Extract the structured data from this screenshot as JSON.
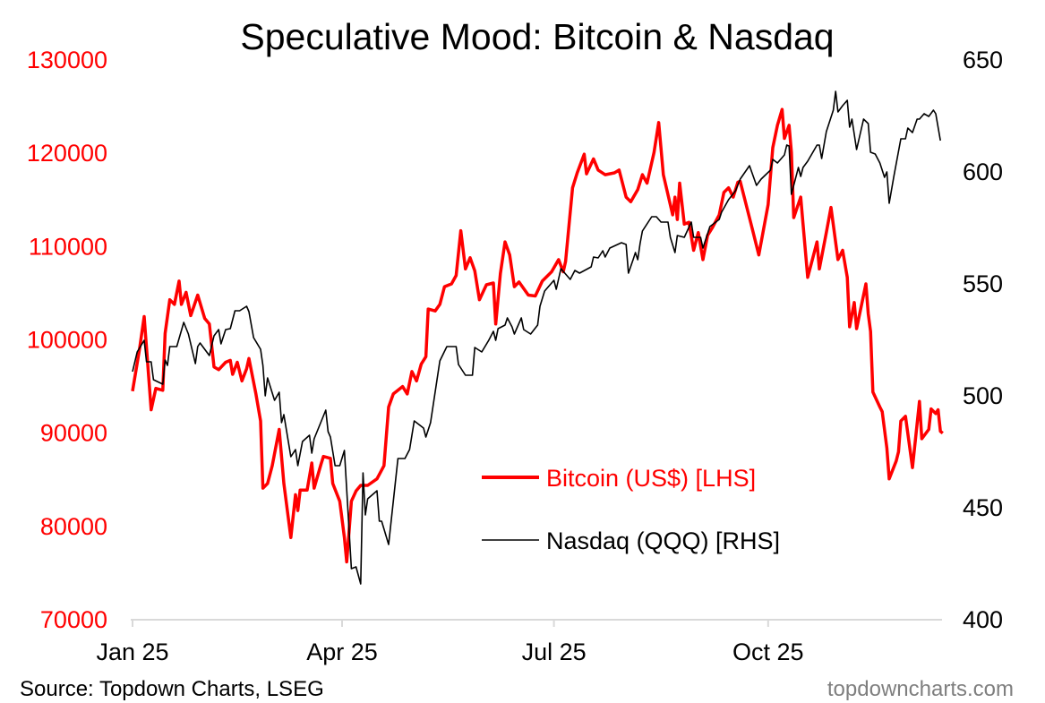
{
  "chart_data": {
    "type": "line",
    "title": "Speculative Mood: Bitcoin & Nasdaq",
    "x_unit": "days since 2025-01-01",
    "xlim": [
      0,
      348
    ],
    "xticks": [
      {
        "label": "Jan 25",
        "day": 0
      },
      {
        "label": "Apr 25",
        "day": 90
      },
      {
        "label": "Jul 25",
        "day": 181
      },
      {
        "label": "Oct 25",
        "day": 273
      }
    ],
    "left_axis": {
      "ylim": [
        70000,
        130000
      ],
      "ticks": [
        "70000",
        "80000",
        "90000",
        "100000",
        "110000",
        "120000",
        "130000"
      ],
      "color": "#ff0000"
    },
    "right_axis": {
      "ylim": [
        400,
        650
      ],
      "ticks": [
        "400",
        "450",
        "500",
        "550",
        "600",
        "650"
      ],
      "color": "#000000"
    },
    "grid": false,
    "legend_placement": "bottom-center",
    "series": [
      {
        "name": "Bitcoin (US$) [LHS]",
        "axis": "left",
        "color": "#ff0000",
        "x": [
          0,
          3,
          5,
          8,
          10,
          13,
          14,
          16,
          18,
          20,
          21,
          23,
          25,
          28,
          31,
          33,
          35,
          37,
          40,
          42,
          43,
          45,
          47,
          49,
          50,
          53,
          55,
          56,
          58,
          60,
          63,
          65,
          68,
          70,
          71,
          72,
          75,
          77,
          78,
          81,
          82,
          85,
          86,
          89,
          91,
          92,
          94,
          96,
          98,
          101,
          105,
          108,
          110,
          112,
          116,
          118,
          120,
          122,
          124,
          126,
          127,
          130,
          132,
          134,
          137,
          139,
          141,
          143,
          145,
          147,
          149,
          152,
          155,
          156,
          158,
          160,
          162,
          164,
          166,
          170,
          173,
          176,
          180,
          183,
          185,
          186,
          189,
          191,
          194,
          195,
          198,
          200,
          203,
          207,
          209,
          212,
          214,
          217,
          219,
          221,
          224,
          226,
          228,
          232,
          233,
          234,
          235,
          237,
          239,
          241,
          243,
          245,
          247,
          249,
          252,
          254,
          256,
          258,
          260,
          261,
          266,
          269,
          273,
          275,
          277,
          279,
          280,
          282,
          283,
          284,
          287,
          288,
          290,
          292,
          294,
          295,
          298,
          300,
          303,
          305,
          307,
          308,
          310,
          311,
          315,
          316,
          317,
          318,
          321,
          322,
          324,
          325,
          328,
          329,
          330,
          332,
          335,
          338,
          339,
          342,
          343,
          345,
          346,
          347,
          348
        ],
        "values": [
          94500,
          99000,
          102500,
          92500,
          94800,
          94600,
          100700,
          104300,
          103800,
          106300,
          103800,
          105100,
          102600,
          104800,
          102300,
          101700,
          97100,
          96800,
          97600,
          97800,
          96300,
          97600,
          95600,
          96900,
          98000,
          94200,
          91300,
          84100,
          84600,
          86500,
          90400,
          84600,
          78800,
          83400,
          81700,
          83900,
          83900,
          86800,
          84100,
          86700,
          87500,
          87300,
          84600,
          82700,
          78800,
          76200,
          82700,
          83800,
          84400,
          84400,
          85100,
          86500,
          92800,
          94200,
          95000,
          94200,
          96600,
          95600,
          97400,
          98200,
          103300,
          103100,
          103800,
          105700,
          106000,
          106900,
          111700,
          107600,
          108800,
          107400,
          104300,
          105900,
          106100,
          101700,
          107100,
          110500,
          109100,
          105700,
          106200,
          104800,
          104700,
          106300,
          107300,
          108600,
          107300,
          108400,
          116300,
          117900,
          119900,
          117800,
          119400,
          118200,
          117700,
          117900,
          118200,
          115300,
          114800,
          116100,
          117700,
          116800,
          120100,
          123300,
          117700,
          113400,
          115300,
          112900,
          116800,
          112400,
          112600,
          109600,
          111500,
          108600,
          111200,
          112000,
          113400,
          115800,
          116300,
          115300,
          116900,
          117000,
          112100,
          109100,
          114500,
          120600,
          123000,
          124700,
          121600,
          123000,
          120100,
          113100,
          115300,
          112400,
          106700,
          108600,
          110500,
          107600,
          111500,
          114200,
          108600,
          109600,
          106700,
          101400,
          104000,
          101200,
          106000,
          102800,
          100900,
          94400,
          92800,
          92300,
          88400,
          85100,
          87000,
          88000,
          91300,
          91800,
          86300,
          93400,
          89400,
          90400,
          92600,
          92100,
          92500,
          90200,
          90000
        ]
      },
      {
        "name": "Nasdaq (QQQ) [RHS]",
        "axis": "right",
        "color": "#000000",
        "x": [
          0,
          2,
          5,
          6,
          8,
          9,
          13,
          14,
          15,
          16,
          19,
          22,
          24,
          27,
          28,
          29,
          33,
          35,
          37,
          38,
          40,
          42,
          44,
          46,
          49,
          50,
          52,
          55,
          56,
          57,
          58,
          61,
          63,
          64,
          65,
          68,
          70,
          71,
          73,
          76,
          77,
          78,
          83,
          84,
          85,
          87,
          89,
          91,
          94,
          96,
          98,
          99,
          100,
          101,
          105,
          106,
          107,
          110,
          114,
          117,
          119,
          121,
          125,
          126,
          128,
          132,
          135,
          139,
          140,
          143,
          146,
          147,
          150,
          153,
          155,
          156,
          157,
          160,
          161,
          163,
          164,
          167,
          168,
          171,
          174,
          175,
          177,
          181,
          182,
          184,
          188,
          190,
          192,
          197,
          198,
          200,
          202,
          203,
          205,
          210,
          212,
          213,
          215,
          216,
          217,
          218,
          219,
          223,
          225,
          227,
          230,
          231,
          233,
          234,
          237,
          240,
          241,
          244,
          245,
          248,
          252,
          253,
          256,
          259,
          261,
          265,
          268,
          270,
          274,
          275,
          277,
          280,
          281,
          282,
          283,
          286,
          287,
          288,
          290,
          294,
          295,
          296,
          298,
          301,
          302,
          303,
          305,
          307,
          308,
          309,
          311,
          314,
          316,
          317,
          319,
          321,
          323,
          324,
          325,
          327,
          330,
          332,
          333,
          335,
          337,
          338,
          340,
          342,
          344,
          345,
          347
        ],
        "values": [
          510.8,
          519.6,
          524.8,
          515.2,
          515.2,
          507.2,
          505.2,
          516,
          513.6,
          522,
          522,
          532.8,
          527.6,
          514.4,
          522,
          523.6,
          518,
          526.8,
          529.6,
          523.2,
          529.6,
          530,
          538,
          538,
          540,
          537.6,
          526,
          520.8,
          513.6,
          500,
          508,
          498,
          501.6,
          488,
          491.6,
          472.8,
          476,
          468.8,
          479.6,
          482.4,
          474.4,
          480.8,
          493.6,
          484,
          481.6,
          468.8,
          468.8,
          475.6,
          422.8,
          423.6,
          416,
          465.6,
          446.8,
          454,
          457.6,
          444,
          444,
          433.6,
          472,
          472,
          476,
          488.8,
          485.6,
          481.6,
          488,
          515.6,
          522,
          522,
          514,
          509.2,
          509.2,
          521.6,
          519.6,
          524.8,
          528.8,
          524.8,
          530,
          531.6,
          534.8,
          530.8,
          527.6,
          534.8,
          529.6,
          527.6,
          531.6,
          540,
          546.8,
          551.6,
          547.6,
          556.8,
          552,
          556,
          554.8,
          557.6,
          562,
          561.6,
          564.8,
          562,
          566,
          568.4,
          567.6,
          554.8,
          560.8,
          564,
          560.8,
          568,
          573.6,
          580,
          580,
          577.6,
          577.6,
          570.8,
          564,
          571.6,
          570.8,
          577.6,
          570.8,
          570.8,
          566,
          575.6,
          578.8,
          582,
          587.6,
          591.6,
          596.8,
          602.8,
          594,
          596.8,
          600.8,
          605.6,
          604,
          607.6,
          612,
          611.6,
          590,
          602,
          598,
          602,
          604.8,
          612,
          612,
          606,
          618,
          627.6,
          636,
          626.8,
          629.6,
          632,
          620,
          623.6,
          610,
          623.6,
          621.6,
          608.8,
          608,
          604,
          597.6,
          600,
          586,
          598,
          614.8,
          614.8,
          619.6,
          617.6,
          623.6,
          623.6,
          626,
          624.8,
          627.6,
          626,
          614
        ]
      }
    ]
  },
  "footer": {
    "source": "Source: Topdown Charts, LSEG",
    "watermark": "topdowncharts.com"
  }
}
